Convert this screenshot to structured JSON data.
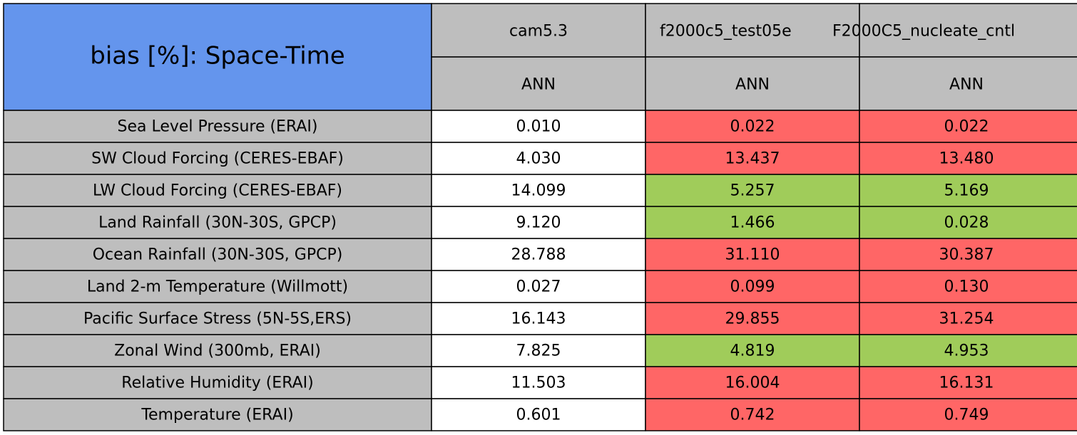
{
  "table": {
    "title": "bias [%]: Space-Time",
    "columns": [
      {
        "name": "cam5.3",
        "season": "ANN"
      },
      {
        "name": "f2000c5_test05e",
        "season": "ANN"
      },
      {
        "name": "F2000C5_nucleate_cntl",
        "season": "ANN"
      }
    ],
    "colors": {
      "title": "#6495ed",
      "header": "#bebebe",
      "label": "#bebebe",
      "neutral": "#ffffff",
      "worse": "#ff6666",
      "better": "#a0cc5a"
    },
    "rows": [
      {
        "label": "Sea Level Pressure (ERAI)",
        "values": [
          "0.010",
          "0.022",
          "0.022"
        ],
        "status": [
          "neutral",
          "worse",
          "worse"
        ]
      },
      {
        "label": "SW Cloud Forcing (CERES-EBAF)",
        "values": [
          "4.030",
          "13.437",
          "13.480"
        ],
        "status": [
          "neutral",
          "worse",
          "worse"
        ]
      },
      {
        "label": "LW Cloud Forcing (CERES-EBAF)",
        "values": [
          "14.099",
          "5.257",
          "5.169"
        ],
        "status": [
          "neutral",
          "better",
          "better"
        ]
      },
      {
        "label": "Land Rainfall (30N-30S, GPCP)",
        "values": [
          "9.120",
          "1.466",
          "0.028"
        ],
        "status": [
          "neutral",
          "better",
          "better"
        ]
      },
      {
        "label": "Ocean Rainfall (30N-30S, GPCP)",
        "values": [
          "28.788",
          "31.110",
          "30.387"
        ],
        "status": [
          "neutral",
          "worse",
          "worse"
        ]
      },
      {
        "label": "Land 2-m Temperature (Willmott)",
        "values": [
          "0.027",
          "0.099",
          "0.130"
        ],
        "status": [
          "neutral",
          "worse",
          "worse"
        ]
      },
      {
        "label": "Pacific Surface Stress (5N-5S,ERS)",
        "values": [
          "16.143",
          "29.855",
          "31.254"
        ],
        "status": [
          "neutral",
          "worse",
          "worse"
        ]
      },
      {
        "label": "Zonal Wind (300mb, ERAI)",
        "values": [
          "7.825",
          "4.819",
          "4.953"
        ],
        "status": [
          "neutral",
          "better",
          "better"
        ]
      },
      {
        "label": "Relative Humidity (ERAI)",
        "values": [
          "11.503",
          "16.004",
          "16.131"
        ],
        "status": [
          "neutral",
          "worse",
          "worse"
        ]
      },
      {
        "label": "Temperature (ERAI)",
        "values": [
          "0.601",
          "0.742",
          "0.749"
        ],
        "status": [
          "neutral",
          "worse",
          "worse"
        ]
      }
    ]
  }
}
